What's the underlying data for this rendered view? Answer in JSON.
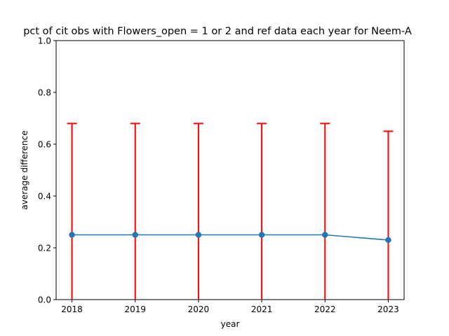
{
  "chart_data": {
    "type": "line",
    "title": "pct of cit obs with Flowers_open = 1 or 2 and ref data each year for Neem-A",
    "xlabel": "year",
    "ylabel": "average difference",
    "x": [
      2018,
      2019,
      2020,
      2021,
      2022,
      2023
    ],
    "x_tick_labels": [
      "2018",
      "2019",
      "2020",
      "2021",
      "2022",
      "2023"
    ],
    "ylim": [
      0.0,
      1.0
    ],
    "y_ticks": [
      0.0,
      0.2,
      0.4,
      0.6,
      0.8,
      1.0
    ],
    "y_tick_labels": [
      "0.0",
      "0.2",
      "0.4",
      "0.6",
      "0.8",
      "1.0"
    ],
    "grid": false,
    "series": [
      {
        "values": [
          0.25,
          0.25,
          0.25,
          0.25,
          0.25,
          0.23
        ],
        "error_upper": [
          0.68,
          0.68,
          0.68,
          0.68,
          0.68,
          0.65
        ],
        "error_lower": [
          0.0,
          0.0,
          0.0,
          0.0,
          0.0,
          0.0
        ],
        "color": "#1f77b4",
        "error_color": "#ff0000",
        "marker": "circle"
      }
    ]
  }
}
